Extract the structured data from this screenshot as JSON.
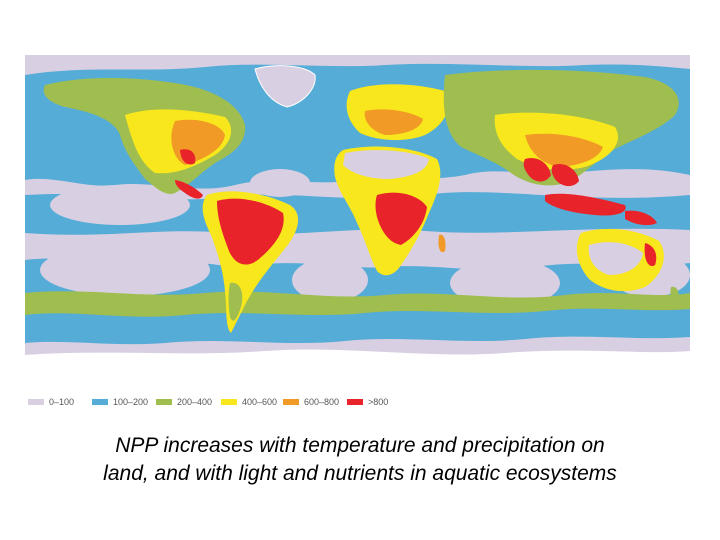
{
  "legend": {
    "items": [
      {
        "label": "0–100",
        "color": "#d9cfe2"
      },
      {
        "label": "100–200",
        "color": "#55acd6"
      },
      {
        "label": "200–400",
        "color": "#9fbe4f"
      },
      {
        "label": "400–600",
        "color": "#f7e71c"
      },
      {
        "label": "600–800",
        "color": "#f19a25"
      },
      {
        "label": ">800",
        "color": "#e8232a"
      }
    ]
  },
  "caption": {
    "line1": "NPP increases with temperature and precipitation on",
    "line2": "land, and with light and nutrients in aquatic ecosystems"
  }
}
